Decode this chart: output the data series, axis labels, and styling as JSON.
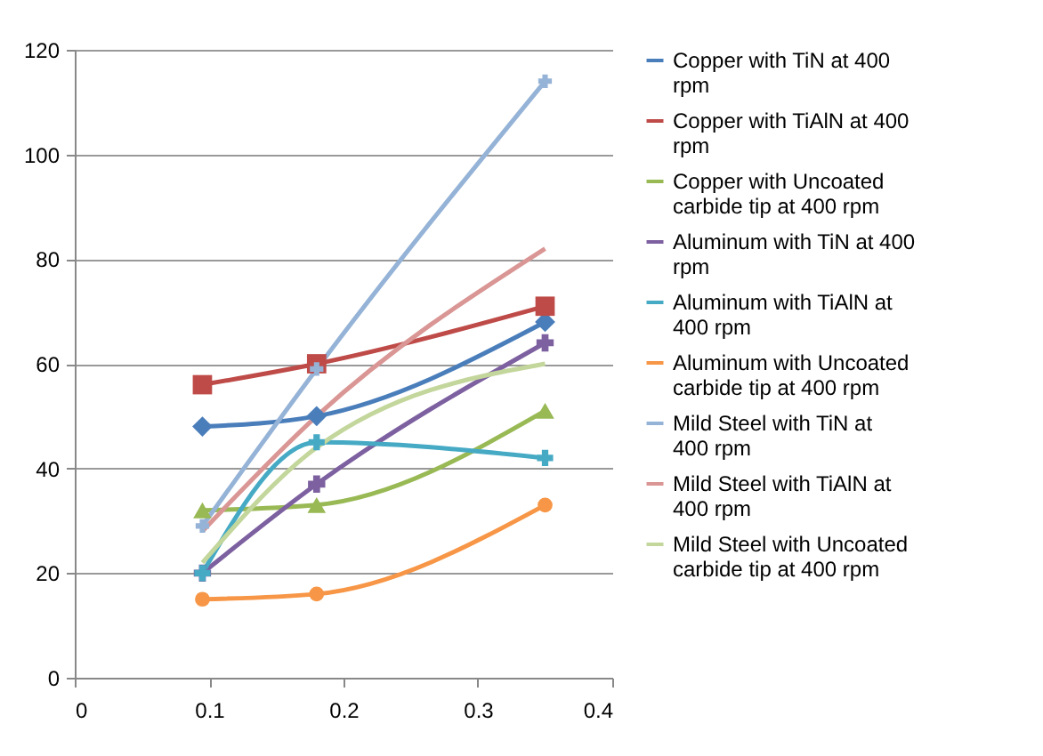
{
  "chart_data": {
    "type": "line",
    "x": [
      0.095,
      0.18,
      0.35
    ],
    "xlim": [
      0,
      0.4
    ],
    "xticks": [
      0,
      0.1,
      0.2,
      0.3,
      0.4
    ],
    "ylim": [
      0,
      120
    ],
    "yticks": [
      0,
      20,
      40,
      60,
      80,
      100,
      120
    ],
    "grid": "y",
    "legend": "right",
    "line_style": "solid",
    "series": [
      {
        "name": "Copper with TiN at 400 rpm",
        "color": "#4a7ebb",
        "marker": "diamond",
        "values": [
          48,
          50,
          68
        ]
      },
      {
        "name": "Copper with TiAlN at 400 rpm",
        "color": "#be4b48",
        "marker": "square",
        "values": [
          56,
          60,
          71
        ]
      },
      {
        "name": "Copper with Uncoated carbide tip at 400 rpm",
        "color": "#98b954",
        "marker": "triangle",
        "values": [
          32,
          33,
          51
        ]
      },
      {
        "name": "Aluminum with TiN at 400 rpm",
        "color": "#7d60a0",
        "marker": "cross",
        "values": [
          20,
          37,
          64
        ]
      },
      {
        "name": "Aluminum with TiAlN at 400 rpm",
        "color": "#46aac5",
        "marker": "cross",
        "values": [
          20,
          45,
          42
        ]
      },
      {
        "name": "Aluminum with Uncoated carbide tip at 400 rpm",
        "color": "#f79646",
        "marker": "circle",
        "values": [
          15,
          16,
          33
        ]
      },
      {
        "name": "Mild Steel with TiN at 400 rpm",
        "color": "#95b3d7",
        "marker": "cross",
        "values": [
          29,
          59,
          114
        ]
      },
      {
        "name": "Mild Steel with TiAlN at 400 rpm",
        "color": "#d99694",
        "marker": "none",
        "values": [
          28,
          50,
          82
        ]
      },
      {
        "name": "Mild Steel with Uncoated carbide tip at 400 rpm",
        "color": "#c3d69b",
        "marker": "none",
        "values": [
          22,
          44,
          60
        ]
      }
    ]
  }
}
